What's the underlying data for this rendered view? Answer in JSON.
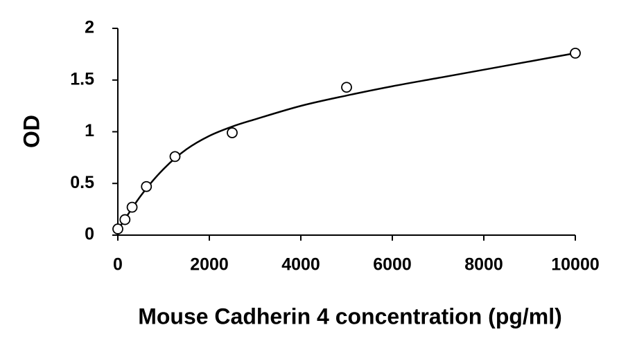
{
  "chart_data": {
    "type": "scatter",
    "x_label": "Mouse Cadherin 4 concentration (pg/ml)",
    "y_label": "OD",
    "x": [
      0,
      156,
      312,
      625,
      1250,
      2500,
      5000,
      10000
    ],
    "values": [
      0.06,
      0.15,
      0.27,
      0.47,
      0.76,
      0.99,
      1.43,
      1.76
    ],
    "color": "#000000",
    "curve": {
      "x": [
        0,
        500,
        1000,
        1500,
        2000,
        2500,
        3000,
        4000,
        5000,
        6000,
        7000,
        8000,
        9000,
        10000
      ],
      "values": [
        0.05,
        0.38,
        0.64,
        0.83,
        0.96,
        1.05,
        1.12,
        1.25,
        1.35,
        1.44,
        1.52,
        1.6,
        1.68,
        1.76
      ]
    },
    "xlim": [
      0,
      10000
    ],
    "xticks": [
      0,
      2000,
      4000,
      6000,
      8000,
      10000
    ],
    "ylim": [
      0,
      2
    ],
    "yticks": [
      0,
      0.5,
      1,
      1.5,
      2
    ],
    "grid": false
  }
}
